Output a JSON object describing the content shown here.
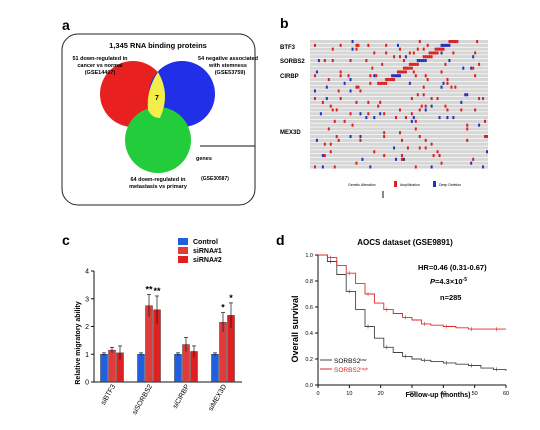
{
  "panels": {
    "a": {
      "label": "a",
      "title": "1,345 RNA binding proteins",
      "set1": {
        "line1": "51 down-regulated in",
        "line2": "cancer vs normal",
        "line3": "(GSE14407)",
        "color": "#e8201f"
      },
      "set2": {
        "line1": "54 negative associated",
        "line2": "with stemness",
        "line3": "(GSE53759)",
        "color": "#2030e8"
      },
      "set3": {
        "line1": "64 down-regulated in",
        "line2": "metastasis vs primary",
        "line3": "(GSE30587)",
        "color": "#22cc3a"
      },
      "overlap_count": "7",
      "legend_text": "genes"
    },
    "b": {
      "label": "b",
      "genes": [
        "BTF3",
        "SORBS2",
        "CIRBP",
        "MEX3D"
      ],
      "legend": {
        "genetic_alteration": "Genetic Alteration",
        "amplification": "Amplification",
        "deep_deletion": "Deep Deletion",
        "amp_color": "#d92020",
        "del_color": "#2233bb"
      }
    },
    "c": {
      "label": "c",
      "legend_items": [
        {
          "name": "Control",
          "color": "#2060e0"
        },
        {
          "name": "siRNA#1",
          "color": "#e23a3a"
        },
        {
          "name": "siRNA#2",
          "color": "#e02020"
        }
      ],
      "ylabel": "Relative migratory ability",
      "yticks": [
        "0",
        "1",
        "2",
        "3",
        "4"
      ],
      "sig_marks": [
        "**",
        "**",
        "*",
        "*"
      ]
    },
    "d": {
      "label": "d",
      "title": "AOCS dataset (GSE9891)",
      "hr": "HR=0.46 (0.31-0.67)",
      "p_prefix": "P",
      "p_value": "=4.3×10",
      "p_exp": "-5",
      "n": "n=285",
      "ylabel": "Overall survival",
      "xlabel": "Follow-up (months)",
      "xticks": [
        "0",
        "10",
        "20",
        "30",
        "40",
        "50",
        "60"
      ],
      "yticks": [
        "0.0",
        "0.2",
        "0.4",
        "0.6",
        "0.8",
        "1.0"
      ],
      "legend_low": "SORBS2",
      "legend_low_sup": "low",
      "legend_high": "SORBS2",
      "legend_high_sup": "high",
      "low_color": "#444444",
      "high_color": "#dd2a2a"
    }
  },
  "chart_data": [
    {
      "type": "bar",
      "categories": [
        "siBTF3",
        "siSORBS2",
        "siCIRBP",
        "siMEX3D"
      ],
      "series": [
        {
          "name": "Control",
          "values": [
            1.0,
            1.0,
            1.0,
            1.0
          ],
          "errors": [
            0.05,
            0.05,
            0.05,
            0.05
          ]
        },
        {
          "name": "siRNA#1",
          "values": [
            1.15,
            2.75,
            1.35,
            2.15
          ],
          "errors": [
            0.1,
            0.4,
            0.25,
            0.35
          ]
        },
        {
          "name": "siRNA#2",
          "values": [
            1.05,
            2.6,
            1.1,
            2.4
          ],
          "errors": [
            0.25,
            0.5,
            0.2,
            0.45
          ]
        }
      ],
      "ylabel": "Relative migratory ability",
      "ylim": [
        0,
        4
      ],
      "legend": "top-right"
    },
    {
      "type": "line",
      "title": "AOCS dataset (GSE9891)",
      "xlabel": "Follow-up (months)",
      "ylabel": "Overall survival",
      "xlim": [
        0,
        60
      ],
      "ylim": [
        0,
        1
      ],
      "series": [
        {
          "name": "SORBS2 low",
          "x": [
            0,
            3,
            6,
            9,
            12,
            15,
            18,
            21,
            24,
            27,
            30,
            33,
            36,
            40,
            44,
            48,
            52,
            56,
            60
          ],
          "y": [
            1.0,
            0.95,
            0.85,
            0.72,
            0.58,
            0.45,
            0.36,
            0.29,
            0.25,
            0.22,
            0.2,
            0.19,
            0.18,
            0.17,
            0.16,
            0.15,
            0.13,
            0.12,
            0.11
          ]
        },
        {
          "name": "SORBS2 high",
          "x": [
            0,
            3,
            6,
            9,
            12,
            15,
            18,
            21,
            24,
            27,
            30,
            33,
            36,
            40,
            44,
            48,
            52,
            56,
            60
          ],
          "y": [
            1.0,
            0.98,
            0.92,
            0.86,
            0.78,
            0.7,
            0.63,
            0.58,
            0.55,
            0.52,
            0.5,
            0.47,
            0.46,
            0.45,
            0.44,
            0.43,
            0.43,
            0.43,
            0.43
          ]
        }
      ]
    }
  ]
}
